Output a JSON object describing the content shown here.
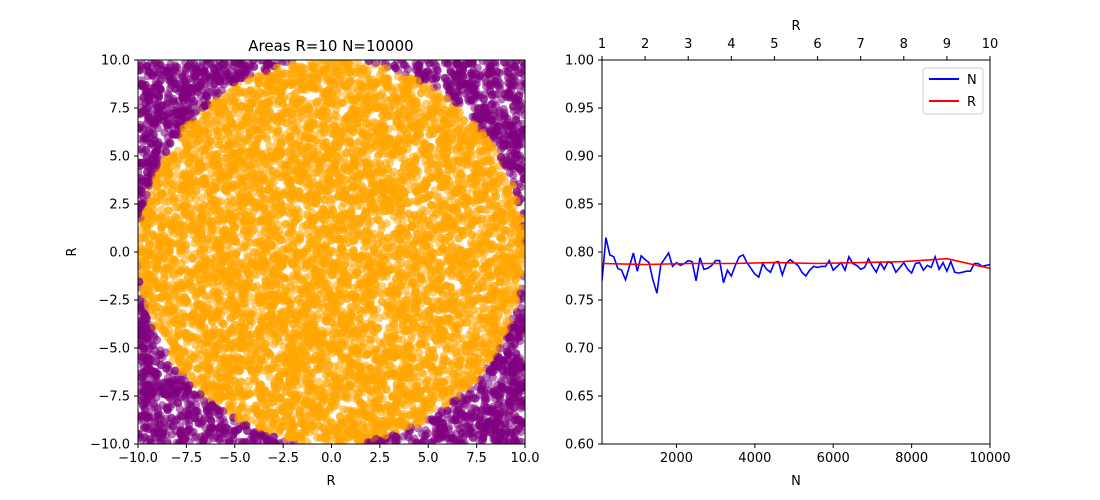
{
  "chart_data": [
    {
      "type": "scatter",
      "title": "Areas R=10 N=10000",
      "xlabel": "R",
      "ylabel": "R",
      "xlim": [
        -10,
        10
      ],
      "ylim": [
        -10,
        10
      ],
      "xticks": [
        "−10.0",
        "−7.5",
        "−5.0",
        "−2.5",
        "0.0",
        "2.5",
        "5.0",
        "7.5",
        "10.0"
      ],
      "yticks": [
        "−10.0",
        "−7.5",
        "−5.0",
        "−2.5",
        "0.0",
        "2.5",
        "5.0",
        "7.5",
        "10.0"
      ],
      "point_count": 10000,
      "circle_radius": 10,
      "colors": {
        "inside": "#FFA500",
        "outside": "#800080"
      },
      "grid": false
    },
    {
      "type": "line",
      "xlabel": "N",
      "top_xlabel": "R",
      "xlim": [
        100,
        10000
      ],
      "ylim": [
        0.6,
        1.0
      ],
      "xticks": [
        "2000",
        "4000",
        "6000",
        "8000",
        "10000"
      ],
      "top_xticks": [
        "1",
        "2",
        "3",
        "4",
        "5",
        "6",
        "7",
        "8",
        "9",
        "10"
      ],
      "yticks": [
        "0.60",
        "0.65",
        "0.70",
        "0.75",
        "0.80",
        "0.85",
        "0.90",
        "0.95",
        "1.00"
      ],
      "legend_position": "top-right",
      "grid": false,
      "series": [
        {
          "name": "N",
          "color": "#0000FF",
          "x": [
            100,
            200,
            300,
            400,
            500,
            600,
            700,
            800,
            900,
            1000,
            1100,
            1200,
            1300,
            1400,
            1500,
            1600,
            1700,
            1800,
            1900,
            2000,
            2100,
            2200,
            2300,
            2400,
            2500,
            2600,
            2700,
            2800,
            2900,
            3000,
            3100,
            3200,
            3300,
            3400,
            3500,
            3600,
            3700,
            3800,
            3900,
            4000,
            4100,
            4200,
            4300,
            4400,
            4500,
            4600,
            4700,
            4800,
            4900,
            5000,
            5100,
            5200,
            5300,
            5400,
            5500,
            5600,
            5700,
            5800,
            5900,
            6000,
            6100,
            6200,
            6300,
            6400,
            6500,
            6600,
            6700,
            6800,
            6900,
            7000,
            7100,
            7200,
            7300,
            7400,
            7500,
            7600,
            7700,
            7800,
            7900,
            8000,
            8100,
            8200,
            8300,
            8400,
            8500,
            8600,
            8700,
            8800,
            8900,
            9000,
            9100,
            9200,
            9300,
            9400,
            9500,
            9600,
            9700,
            9800,
            9900,
            10000
          ],
          "values": [
            0.77,
            0.815,
            0.797,
            0.795,
            0.783,
            0.781,
            0.771,
            0.785,
            0.799,
            0.78,
            0.796,
            0.792,
            0.789,
            0.771,
            0.757,
            0.787,
            0.793,
            0.799,
            0.785,
            0.789,
            0.786,
            0.788,
            0.791,
            0.79,
            0.77,
            0.794,
            0.782,
            0.783,
            0.786,
            0.791,
            0.791,
            0.768,
            0.781,
            0.775,
            0.786,
            0.795,
            0.797,
            0.789,
            0.783,
            0.777,
            0.774,
            0.788,
            0.782,
            0.779,
            0.789,
            0.79,
            0.776,
            0.788,
            0.792,
            0.789,
            0.786,
            0.779,
            0.775,
            0.781,
            0.785,
            0.784,
            0.785,
            0.785,
            0.791,
            0.781,
            0.785,
            0.789,
            0.781,
            0.795,
            0.788,
            0.786,
            0.782,
            0.784,
            0.793,
            0.785,
            0.779,
            0.789,
            0.782,
            0.79,
            0.788,
            0.779,
            0.784,
            0.789,
            0.782,
            0.778,
            0.788,
            0.789,
            0.781,
            0.786,
            0.784,
            0.795,
            0.782,
            0.789,
            0.78,
            0.79,
            0.779,
            0.778,
            0.779,
            0.78,
            0.78,
            0.788,
            0.788,
            0.785,
            0.786,
            0.787
          ]
        },
        {
          "name": "R",
          "color": "#FF0000",
          "x": [
            100,
            1200,
            2300,
            3400,
            4500,
            5600,
            6700,
            7800,
            8900,
            10000
          ],
          "values": [
            0.788,
            0.787,
            0.788,
            0.788,
            0.789,
            0.788,
            0.789,
            0.79,
            0.793,
            0.783
          ]
        }
      ]
    }
  ]
}
